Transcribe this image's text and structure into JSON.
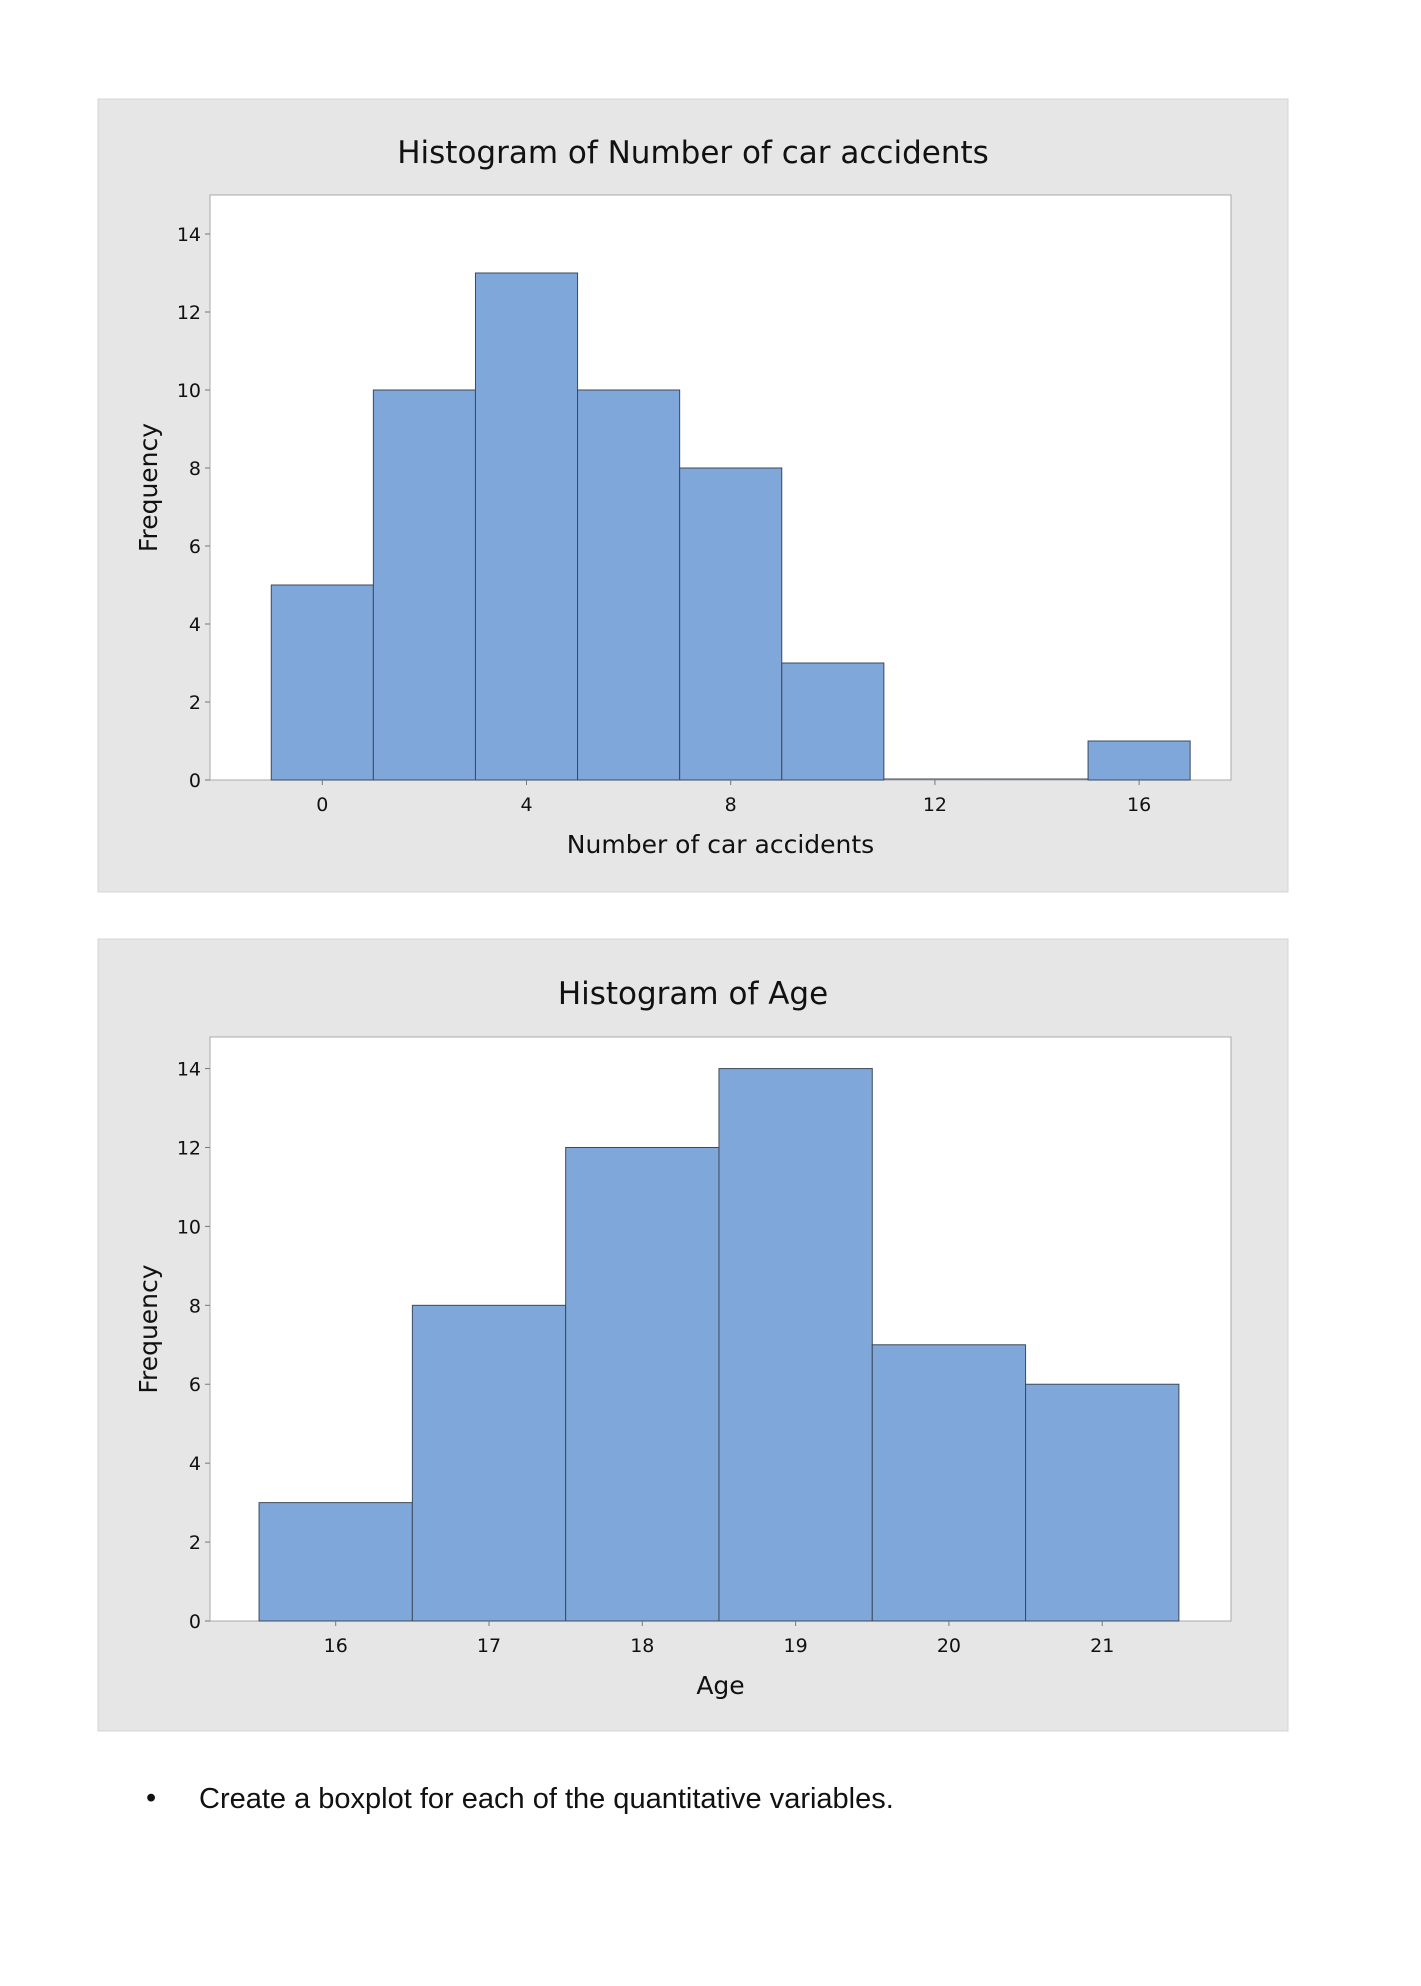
{
  "chart_data": [
    {
      "type": "bar",
      "title": "Histogram of Number of car accidents",
      "xlabel": "Number of car accidents",
      "ylabel": "Frequency",
      "bin_edges": [
        -1,
        1,
        3,
        5,
        7,
        9,
        11,
        13,
        15,
        17
      ],
      "values": [
        5,
        10,
        13,
        10,
        8,
        3,
        0,
        0,
        1
      ],
      "xticks": [
        0,
        4,
        8,
        12,
        16
      ],
      "yticks": [
        0,
        2,
        4,
        6,
        8,
        10,
        12,
        14
      ],
      "xlim": [
        -2.2,
        17.8
      ],
      "ylim": [
        0,
        15
      ],
      "grid": false,
      "bar_color": "#7fa7d9"
    },
    {
      "type": "bar",
      "title": "Histogram of Age",
      "xlabel": "Age",
      "ylabel": "Frequency",
      "bin_edges": [
        15.5,
        16.5,
        17.5,
        18.5,
        19.5,
        20.5,
        21.5
      ],
      "values": [
        3,
        8,
        12,
        14,
        7,
        6
      ],
      "xticks": [
        16,
        17,
        18,
        19,
        20,
        21
      ],
      "yticks": [
        0,
        2,
        4,
        6,
        8,
        10,
        12,
        14
      ],
      "xlim": [
        15.18,
        21.84
      ],
      "ylim": [
        0,
        14.8
      ],
      "grid": false,
      "bar_color": "#7fa7d9"
    }
  ],
  "document": {
    "bullet": "•",
    "text": "Create a boxplot for each of the quantitative variables."
  }
}
